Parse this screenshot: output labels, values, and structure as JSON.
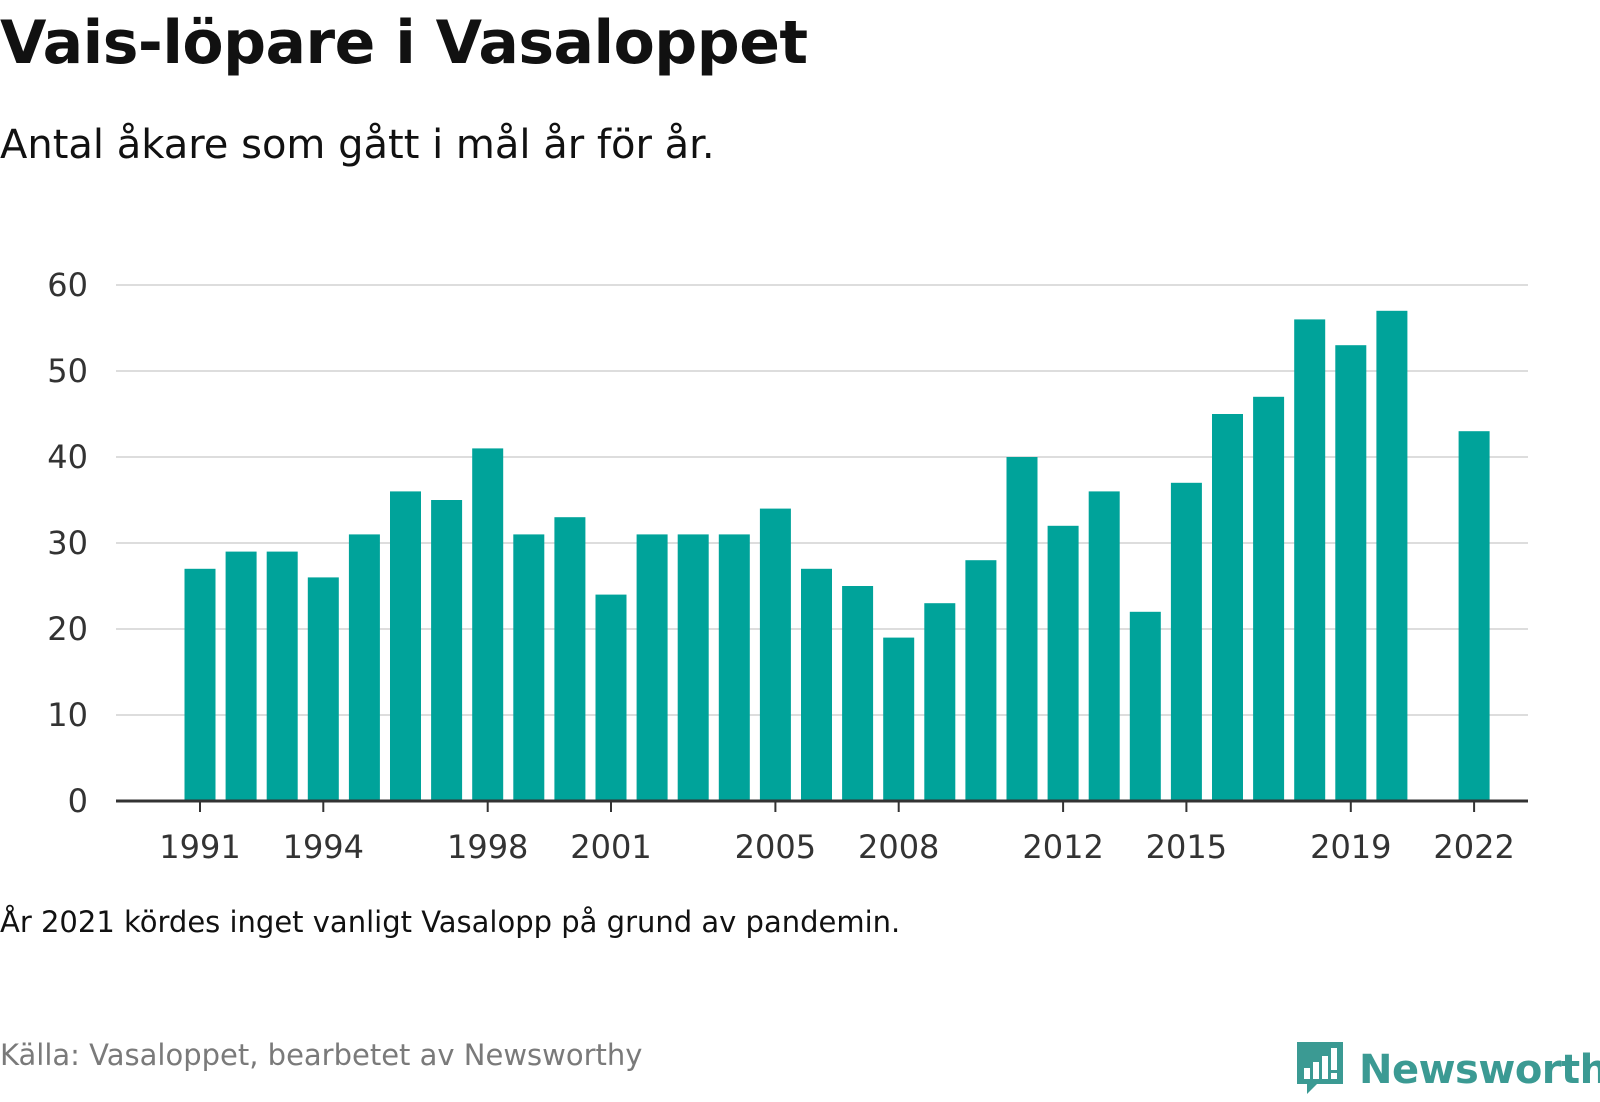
{
  "header": {
    "title": "Vais-löpare i Vasaloppet",
    "subtitle": "Antal åkare som gått i mål år för år."
  },
  "footer": {
    "note": "År 2021 kördes inget vanligt Vasalopp på grund av pandemin.",
    "source": "Källa: Vasaloppet, bearbetet av Newsworthy",
    "brand": "Newsworthy"
  },
  "colors": {
    "bar": "#00a39a",
    "grid": "#dddddd",
    "axis": "#333333",
    "brand": "#3b9a93"
  },
  "chart_data": {
    "type": "bar",
    "x": [
      1991,
      1992,
      1993,
      1994,
      1995,
      1996,
      1997,
      1998,
      1999,
      2000,
      2001,
      2002,
      2003,
      2004,
      2005,
      2006,
      2007,
      2008,
      2009,
      2010,
      2011,
      2012,
      2013,
      2014,
      2015,
      2016,
      2017,
      2018,
      2019,
      2020,
      2021,
      2022
    ],
    "values": [
      27,
      29,
      29,
      26,
      31,
      36,
      35,
      41,
      31,
      33,
      24,
      31,
      31,
      31,
      34,
      27,
      25,
      19,
      23,
      28,
      40,
      32,
      36,
      22,
      37,
      45,
      47,
      56,
      53,
      57,
      null,
      43
    ],
    "x_tick_labels": [
      "1991",
      "1994",
      "1998",
      "2001",
      "2005",
      "2008",
      "2012",
      "2015",
      "2019",
      "2022"
    ],
    "y_ticks": [
      0,
      10,
      20,
      30,
      40,
      50,
      60
    ],
    "ylim": [
      0,
      60
    ],
    "grid": true,
    "legend": "none"
  }
}
